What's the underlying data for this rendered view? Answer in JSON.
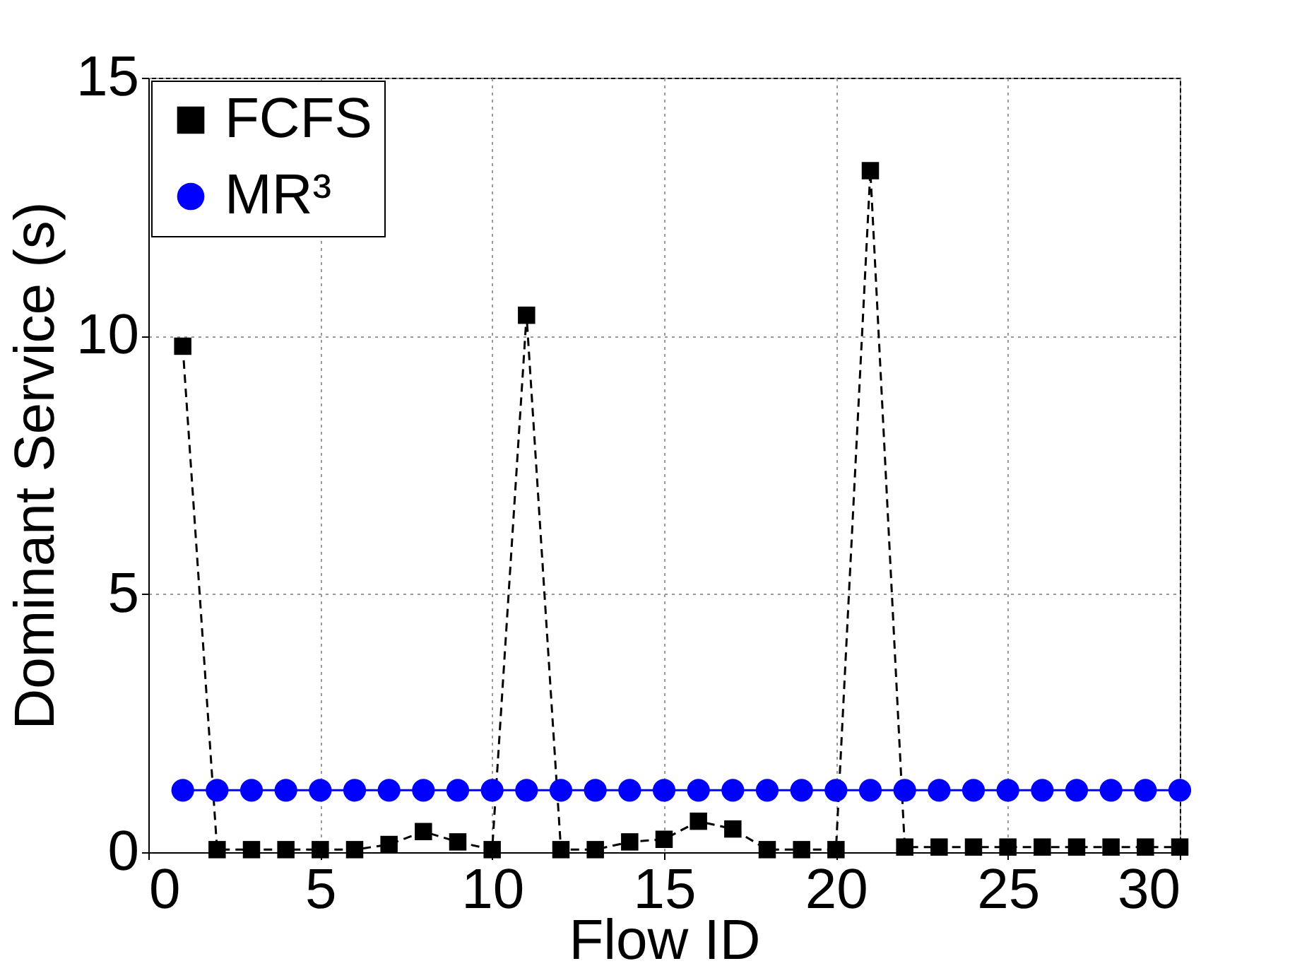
{
  "chart_data": {
    "type": "line",
    "xlabel": "Flow ID",
    "ylabel": "Dominant Service (s)",
    "x": [
      1,
      2,
      3,
      4,
      5,
      6,
      7,
      8,
      9,
      10,
      11,
      12,
      13,
      14,
      15,
      16,
      17,
      18,
      19,
      20,
      21,
      22,
      23,
      24,
      25,
      26,
      27,
      28,
      29,
      30
    ],
    "series": [
      {
        "name": "FCFS",
        "color": "#000000",
        "marker": "square",
        "line_style": "dashed",
        "values": [
          9.8,
          0.05,
          0.05,
          0.05,
          0.05,
          0.05,
          0.15,
          0.4,
          0.2,
          0.05,
          10.4,
          0.05,
          0.05,
          0.2,
          0.25,
          0.6,
          0.45,
          0.05,
          0.05,
          0.05,
          13.2,
          0.1,
          0.1,
          0.1,
          0.1,
          0.1,
          0.1,
          0.1,
          0.1,
          0.1
        ]
      },
      {
        "name": "MR³",
        "color": "#0000ff",
        "marker": "circle",
        "line_style": "solid",
        "values": [
          1.2,
          1.2,
          1.2,
          1.2,
          1.2,
          1.2,
          1.2,
          1.2,
          1.2,
          1.2,
          1.2,
          1.2,
          1.2,
          1.2,
          1.2,
          1.2,
          1.2,
          1.2,
          1.2,
          1.2,
          1.2,
          1.2,
          1.2,
          1.2,
          1.2,
          1.2,
          1.2,
          1.2,
          1.2,
          1.2
        ]
      }
    ],
    "xlim": [
      0,
      30
    ],
    "xticks": [
      0,
      5,
      10,
      15,
      20,
      25,
      30
    ],
    "ylim": [
      0,
      15
    ],
    "yticks": [
      0,
      5,
      10,
      15
    ],
    "grid": true,
    "legend": "top left"
  }
}
